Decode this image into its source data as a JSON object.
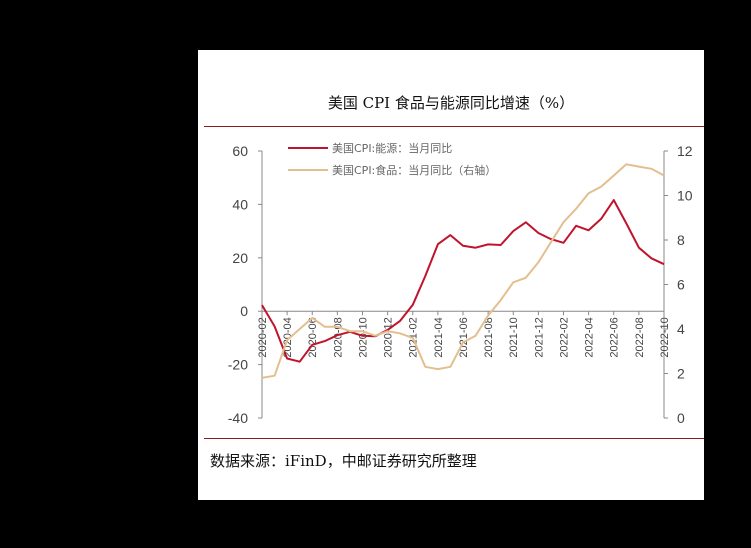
{
  "title": "美国 CPI 食品与能源同比增速（%）",
  "source": "数据来源：iFinD，中邮证券研究所整理",
  "chart_data": {
    "type": "line",
    "x": [
      "2020-02",
      "2020-03",
      "2020-04",
      "2020-05",
      "2020-06",
      "2020-07",
      "2020-08",
      "2020-09",
      "2020-10",
      "2020-11",
      "2020-12",
      "2021-01",
      "2021-02",
      "2021-03",
      "2021-04",
      "2021-05",
      "2021-06",
      "2021-07",
      "2021-08",
      "2021-09",
      "2021-10",
      "2021-11",
      "2021-12",
      "2022-01",
      "2022-02",
      "2022-03",
      "2022-04",
      "2022-05",
      "2022-06",
      "2022-07",
      "2022-08",
      "2022-09",
      "2022-10"
    ],
    "x_tick_labels": [
      "2020-02",
      "2020-04",
      "2020-06",
      "2020-08",
      "2020-10",
      "2020-12",
      "2021-02",
      "2021-04",
      "2021-06",
      "2021-08",
      "2021-10",
      "2021-12",
      "2022-02",
      "2022-04",
      "2022-06",
      "2022-08",
      "2022-10"
    ],
    "y_left": {
      "ylim": [
        -40,
        60
      ],
      "ticks": [
        -40,
        -20,
        0,
        20,
        40,
        60
      ]
    },
    "y_right": {
      "ylim": [
        0,
        12
      ],
      "ticks": [
        0,
        2,
        4,
        6,
        8,
        10,
        12
      ]
    },
    "legend_position": "top-left",
    "series": [
      {
        "name": "美国CPI:能源：当月同比",
        "axis": "left",
        "color": "#c0142c",
        "values": [
          2.3,
          -5.7,
          -17.7,
          -18.9,
          -12.6,
          -11.2,
          -9.0,
          -7.7,
          -9.2,
          -9.4,
          -7.0,
          -3.6,
          2.4,
          13.2,
          25.1,
          28.5,
          24.5,
          23.8,
          25.0,
          24.8,
          30.0,
          33.3,
          29.3,
          27.0,
          25.6,
          32.0,
          30.3,
          34.6,
          41.6,
          32.9,
          23.8,
          19.8,
          17.6
        ]
      },
      {
        "name": "美国CPI:食品：当月同比（右轴）",
        "axis": "right",
        "color": "#e3bf8f",
        "values": [
          1.8,
          1.9,
          3.5,
          4.0,
          4.5,
          4.1,
          4.1,
          3.9,
          3.9,
          3.7,
          3.9,
          3.8,
          3.6,
          2.3,
          2.2,
          2.3,
          3.4,
          3.7,
          4.6,
          5.3,
          6.1,
          6.3,
          7.0,
          7.9,
          8.8,
          9.4,
          10.1,
          10.4,
          10.9,
          11.4,
          11.3,
          11.2,
          10.9
        ]
      }
    ]
  }
}
